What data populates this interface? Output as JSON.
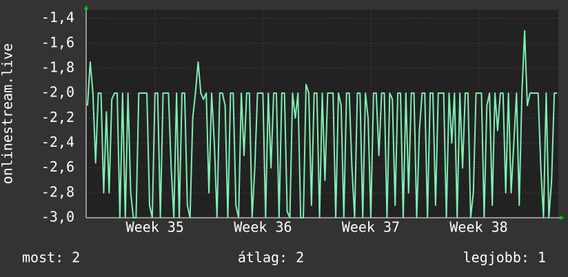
{
  "chart_data": {
    "type": "line",
    "y_axis_label": "onlinestream.live",
    "categories": [
      null,
      null,
      null,
      null,
      null,
      null,
      null,
      null,
      null,
      null,
      null,
      null,
      null,
      null,
      null,
      null,
      null,
      null,
      null,
      null,
      null,
      null,
      null,
      null,
      null,
      "Week 35",
      null,
      null,
      null,
      null,
      null,
      null,
      null,
      null,
      null,
      null,
      null,
      null,
      null,
      null,
      null,
      null,
      null,
      null,
      null,
      null,
      null,
      null,
      null,
      null,
      null,
      null,
      null,
      null,
      null,
      null,
      null,
      null,
      null,
      null,
      null,
      null,
      null,
      null,
      null,
      "Week 36",
      null,
      null,
      null,
      null,
      null,
      null,
      null,
      null,
      null,
      null,
      null,
      null,
      null,
      null,
      null,
      null,
      null,
      null,
      null,
      null,
      null,
      null,
      null,
      null,
      null,
      null,
      null,
      null,
      null,
      null,
      null,
      null,
      null,
      null,
      null,
      null,
      null,
      null,
      null,
      "Week 37",
      null,
      null,
      null,
      null,
      null,
      null,
      null,
      null,
      null,
      null,
      null,
      null,
      null,
      null,
      null,
      null,
      null,
      null,
      null,
      null,
      null,
      null,
      null,
      null,
      null,
      null,
      null,
      null,
      null,
      null,
      null,
      null,
      null,
      null,
      null,
      null,
      null,
      null,
      null,
      "Week 38",
      null,
      null,
      null,
      null,
      null,
      null,
      null,
      null,
      null,
      null,
      null,
      null,
      null,
      null,
      null,
      null,
      null,
      null,
      null,
      null,
      null,
      null,
      null,
      null,
      null,
      null,
      null,
      null,
      null
    ],
    "series": [
      {
        "color": "#7fefb4",
        "values": [
          -2.1,
          -1.75,
          -2.0,
          -2.56,
          -2.0,
          -2.0,
          -2.8,
          -2.15,
          -2.8,
          -2.05,
          -2.0,
          -2.0,
          -3.0,
          -2.0,
          -3.0,
          -2.0,
          -2.8,
          -3.0,
          -3.0,
          -2.0,
          -2.0,
          -2.0,
          -2.0,
          -2.9,
          -3.0,
          -2.0,
          -2.0,
          -3.0,
          -2.0,
          -2.0,
          -2.0,
          -2.6,
          -3.0,
          -2.0,
          -3.0,
          -2.0,
          -2.0,
          -2.9,
          -3.0,
          -2.2,
          -2.0,
          -1.75,
          -2.0,
          -2.05,
          -2.0,
          -2.8,
          -2.0,
          -2.4,
          -3.0,
          -2.0,
          -2.0,
          -2.1,
          -3.0,
          -2.0,
          -2.0,
          -2.9,
          -3.0,
          -2.0,
          -2.5,
          -2.0,
          -2.0,
          -3.0,
          -2.6,
          -2.0,
          -2.0,
          -2.0,
          -3.0,
          -2.0,
          -2.6,
          -2.0,
          -2.0,
          -3.0,
          -2.0,
          -2.0,
          -2.95,
          -3.0,
          -2.0,
          -2.2,
          -2.0,
          -3.0,
          -3.0,
          -1.93,
          -2.0,
          -2.9,
          -2.0,
          -2.0,
          -3.0,
          -2.0,
          -2.7,
          -2.0,
          -2.0,
          -2.0,
          -3.0,
          -2.0,
          -2.1,
          -3.0,
          -2.0,
          -2.0,
          -2.6,
          -3.0,
          -2.0,
          -2.0,
          -3.0,
          -2.0,
          -2.2,
          -3.0,
          -2.0,
          -2.0,
          -2.5,
          -2.0,
          -2.0,
          -3.0,
          -2.0,
          -2.05,
          -2.9,
          -2.0,
          -2.0,
          -3.0,
          -2.0,
          -2.8,
          -2.0,
          -2.0,
          -3.0,
          -2.3,
          -2.0,
          -2.0,
          -3.0,
          -2.0,
          -2.0,
          -2.9,
          -2.0,
          -2.0,
          -2.0,
          -3.0,
          -2.0,
          -2.4,
          -2.0,
          -3.0,
          -2.0,
          -2.6,
          -2.0,
          -2.0,
          -3.0,
          -2.8,
          -2.0,
          -2.0,
          -2.0,
          -3.0,
          -2.1,
          -2.0,
          -2.9,
          -2.0,
          -2.3,
          -2.0,
          -2.0,
          -2.8,
          -2.0,
          -2.8,
          -2.4,
          -2.0,
          -2.9,
          -2.0,
          -1.5,
          -2.1,
          -2.0,
          -2.0,
          -2.0,
          -2.0,
          -2.6,
          -3.0,
          -2.0,
          -3.0,
          -2.7,
          -2.0,
          -2.0
        ]
      }
    ],
    "ylim": [
      -3.0,
      -1.33
    ],
    "yticks": [
      {
        "value": -3.0,
        "label": "-3,0"
      },
      {
        "value": -2.8,
        "label": "-2,8"
      },
      {
        "value": -2.6,
        "label": "-2,6"
      },
      {
        "value": -2.4,
        "label": "-2,4"
      },
      {
        "value": -2.2,
        "label": "-2,2"
      },
      {
        "value": -2.0,
        "label": "-2,0"
      },
      {
        "value": -1.8,
        "label": "-1,8"
      },
      {
        "value": -1.6,
        "label": "-1,6"
      },
      {
        "value": -1.4,
        "label": "-1,4"
      }
    ],
    "grid": true,
    "footer": [
      "most: 2",
      "átlag: 2",
      "legjobb: 1"
    ]
  }
}
